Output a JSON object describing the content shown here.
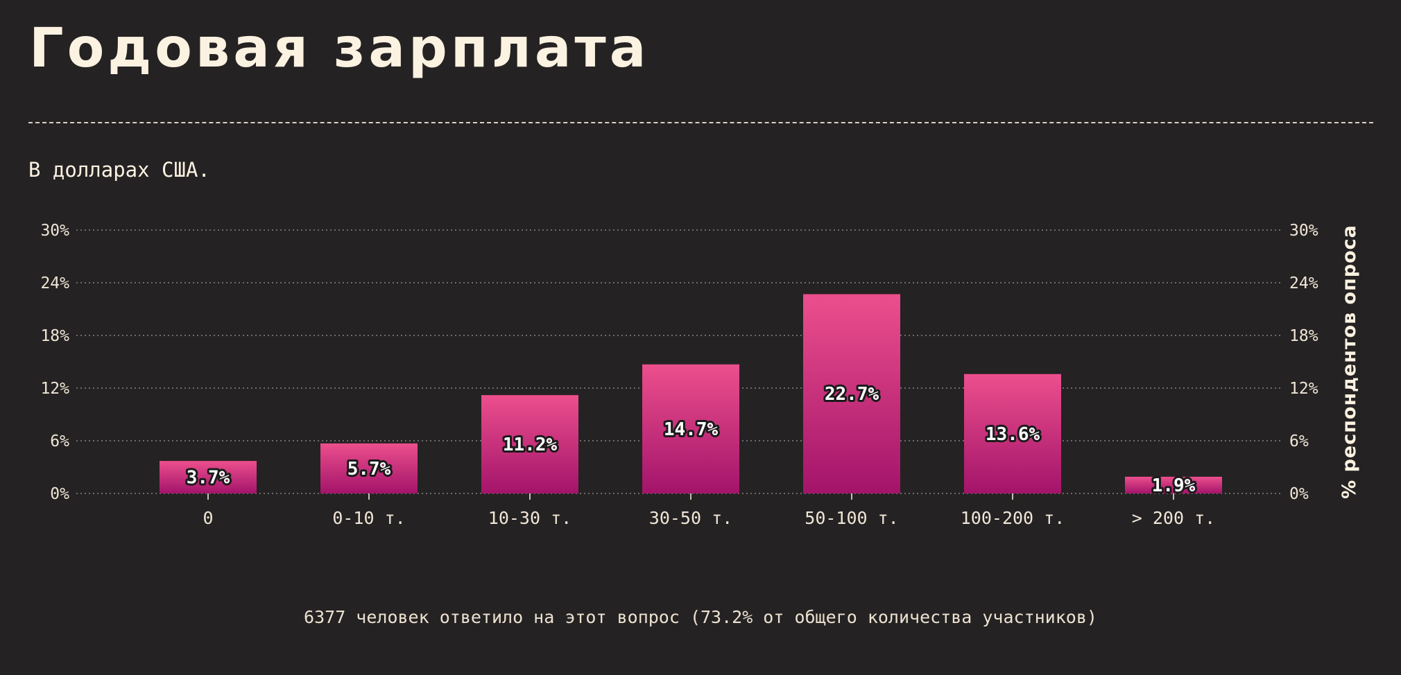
{
  "title": "Годовая зарплата",
  "subtitle": "В долларах США.",
  "footer": "6377 человек ответило на этот вопрос (73.2% от общего количества участников)",
  "colors": {
    "background": "#252223",
    "text": "#fbf2e1",
    "bar_top": "#ec4f8d",
    "bar_bottom": "#a3146a",
    "grid": "#8a8485"
  },
  "chart_data": {
    "type": "bar",
    "categories": [
      "0",
      "0-10 т.",
      "10-30 т.",
      "30-50 т.",
      "50-100 т.",
      "100-200 т.",
      "> 200 т."
    ],
    "values": [
      3.7,
      5.7,
      11.2,
      14.7,
      22.7,
      13.6,
      1.9
    ],
    "value_labels": [
      "3.7%",
      "5.7%",
      "11.2%",
      "14.7%",
      "22.7%",
      "13.6%",
      "1.9%"
    ],
    "y_ticks": [
      "0%",
      "6%",
      "12%",
      "18%",
      "24%",
      "30%"
    ],
    "ylim": [
      0,
      30
    ],
    "ylabel": "% респондентов опроса",
    "grid": true,
    "secondary_axis": "right"
  }
}
